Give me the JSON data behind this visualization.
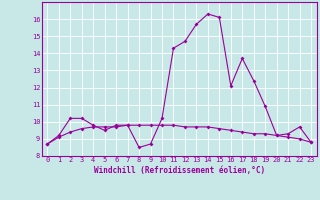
{
  "xlabel": "Windchill (Refroidissement éolien,°C)",
  "line1_x": [
    0,
    1,
    2,
    3,
    4,
    5,
    6,
    7,
    8,
    9,
    10,
    11,
    12,
    13,
    14,
    15,
    16,
    17,
    18,
    19,
    20,
    21,
    22,
    23
  ],
  "line1_y": [
    8.7,
    9.2,
    10.2,
    10.2,
    9.8,
    9.5,
    9.8,
    9.8,
    8.5,
    8.7,
    10.2,
    14.3,
    14.7,
    15.7,
    16.3,
    16.1,
    12.1,
    13.7,
    12.4,
    10.9,
    9.2,
    9.3,
    9.7,
    8.8
  ],
  "line2_x": [
    0,
    1,
    2,
    3,
    4,
    5,
    6,
    7,
    8,
    9,
    10,
    11,
    12,
    13,
    14,
    15,
    16,
    17,
    18,
    19,
    20,
    21,
    22,
    23
  ],
  "line2_y": [
    8.7,
    9.1,
    9.4,
    9.6,
    9.7,
    9.7,
    9.7,
    9.8,
    9.8,
    9.8,
    9.8,
    9.8,
    9.7,
    9.7,
    9.7,
    9.6,
    9.5,
    9.4,
    9.3,
    9.3,
    9.2,
    9.1,
    9.0,
    8.8
  ],
  "line_color": "#990099",
  "bg_color": "#c8e8e8",
  "grid_color": "#ffffff",
  "ylim": [
    8,
    17
  ],
  "xlim": [
    -0.5,
    23.5
  ],
  "yticks": [
    8,
    9,
    10,
    11,
    12,
    13,
    14,
    15,
    16
  ],
  "xticks": [
    0,
    1,
    2,
    3,
    4,
    5,
    6,
    7,
    8,
    9,
    10,
    11,
    12,
    13,
    14,
    15,
    16,
    17,
    18,
    19,
    20,
    21,
    22,
    23
  ],
  "tick_fontsize": 5.0,
  "xlabel_fontsize": 5.5,
  "marker_size": 2.0,
  "line_width": 0.8
}
